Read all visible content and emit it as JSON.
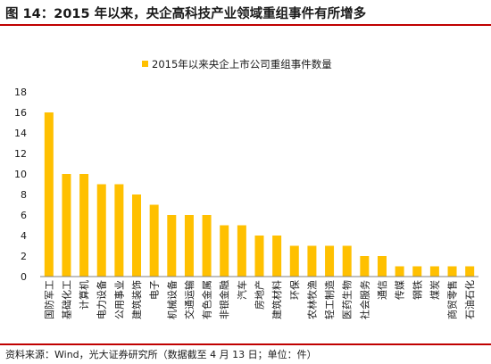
{
  "figure_title": "图 14：2015 年以来，央企高科技产业领域重组事件有所增多",
  "source_note": "资料来源：Wind，光大证券研究所（数据截至 4 月 13 日；单位：件）",
  "colors": {
    "bar": "#FFC000",
    "rule": "#C00000",
    "text": "#1A1A1A",
    "axis": "#808080"
  },
  "chart_data": {
    "type": "bar",
    "title": "",
    "xlabel": "",
    "ylabel": "",
    "ylim": [
      0,
      18
    ],
    "yticks": [
      0,
      2,
      4,
      6,
      8,
      10,
      12,
      14,
      16,
      18
    ],
    "grid": false,
    "legend_position": "top",
    "categories": [
      "国防军工",
      "基础化工",
      "计算机",
      "电力设备",
      "公用事业",
      "建筑装饰",
      "电子",
      "机械设备",
      "交通运输",
      "有色金属",
      "非银金融",
      "汽车",
      "房地产",
      "建筑材料",
      "环保",
      "农林牧渔",
      "轻工制造",
      "医药生物",
      "社会服务",
      "通信",
      "传媒",
      "钢铁",
      "煤炭",
      "商贸零售",
      "石油石化"
    ],
    "series": [
      {
        "name": "2015年以来央企上市公司重组事件数量",
        "values": [
          16,
          10,
          10,
          9,
          9,
          8,
          7,
          6,
          6,
          6,
          5,
          5,
          4,
          4,
          3,
          3,
          3,
          3,
          2,
          2,
          1,
          1,
          1,
          1,
          1
        ]
      }
    ]
  }
}
